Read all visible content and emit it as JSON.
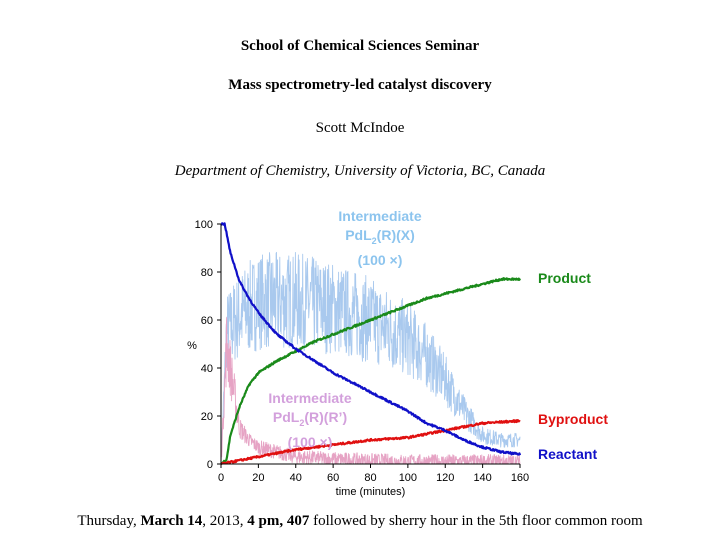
{
  "header": {
    "seminar": "School of Chemical Sciences Seminar",
    "title": "Mass spectrometry-led catalyst discovery",
    "speaker": "Scott McIndoe",
    "affiliation": "Department of Chemistry, University of Victoria, BC, Canada"
  },
  "footer": {
    "day": "Thursday, ",
    "date": "March 14",
    "year": ", 2013, ",
    "time_room": "4 pm, 407",
    "rest": " followed by sherry hour in the 5th floor common room"
  },
  "chart_data": {
    "type": "line",
    "xlabel": "time (minutes)",
    "ylabel": "%",
    "xlim": [
      0,
      160
    ],
    "ylim": [
      0,
      100
    ],
    "xticks": [
      0,
      20,
      40,
      60,
      80,
      100,
      120,
      140,
      160
    ],
    "yticks": [
      0,
      20,
      40,
      60,
      80,
      100
    ],
    "grid": false,
    "series": [
      {
        "name": "Intermediate PdL2(R)(X) (100 ×)",
        "label_lines": [
          "Intermediate",
          "PdL",
          "2",
          "(R)(X)",
          "(100 ×)"
        ],
        "color": "#a9c9ee",
        "noisy": true,
        "x": [
          0,
          3,
          10,
          20,
          40,
          60,
          80,
          100,
          110,
          120,
          130,
          140,
          150,
          160
        ],
        "y": [
          0,
          55,
          62,
          68,
          68,
          65,
          60,
          52,
          45,
          35,
          22,
          12,
          10,
          10
        ]
      },
      {
        "name": "Intermediate PdL2(R)(R') (100 ×)",
        "label_lines": [
          "Intermediate",
          "PdL",
          "2",
          "(R)(R’)",
          "(100 ×)"
        ],
        "color": "#e6a3c4",
        "noisy": true,
        "x": [
          0,
          3,
          5,
          10,
          15,
          20,
          30,
          40,
          60,
          100,
          160
        ],
        "y": [
          0,
          50,
          40,
          15,
          10,
          7,
          5,
          3,
          2,
          1,
          1
        ]
      },
      {
        "name": "Product",
        "color": "#1a8a1a",
        "x": [
          0,
          3,
          5,
          10,
          15,
          20,
          30,
          40,
          50,
          60,
          70,
          80,
          90,
          100,
          110,
          120,
          130,
          140,
          150,
          160
        ],
        "y": [
          0,
          2,
          12,
          24,
          33,
          38,
          43,
          47,
          51,
          54,
          57,
          60,
          63,
          66,
          69,
          71,
          73,
          75,
          77,
          77
        ]
      },
      {
        "name": "Byproduct",
        "color": "#e01010",
        "x": [
          0,
          40,
          80,
          100,
          120,
          140,
          160
        ],
        "y": [
          0,
          6,
          10,
          11,
          14,
          17,
          18
        ]
      },
      {
        "name": "Reactant",
        "color": "#1010c8",
        "x": [
          0,
          2,
          5,
          10,
          15,
          20,
          30,
          40,
          50,
          60,
          70,
          80,
          90,
          100,
          110,
          120,
          130,
          140,
          150,
          160
        ],
        "y": [
          100,
          100,
          88,
          76,
          69,
          63,
          54,
          48,
          43,
          38,
          34,
          30,
          26,
          22,
          17,
          14,
          10,
          7,
          5,
          4
        ]
      }
    ]
  }
}
